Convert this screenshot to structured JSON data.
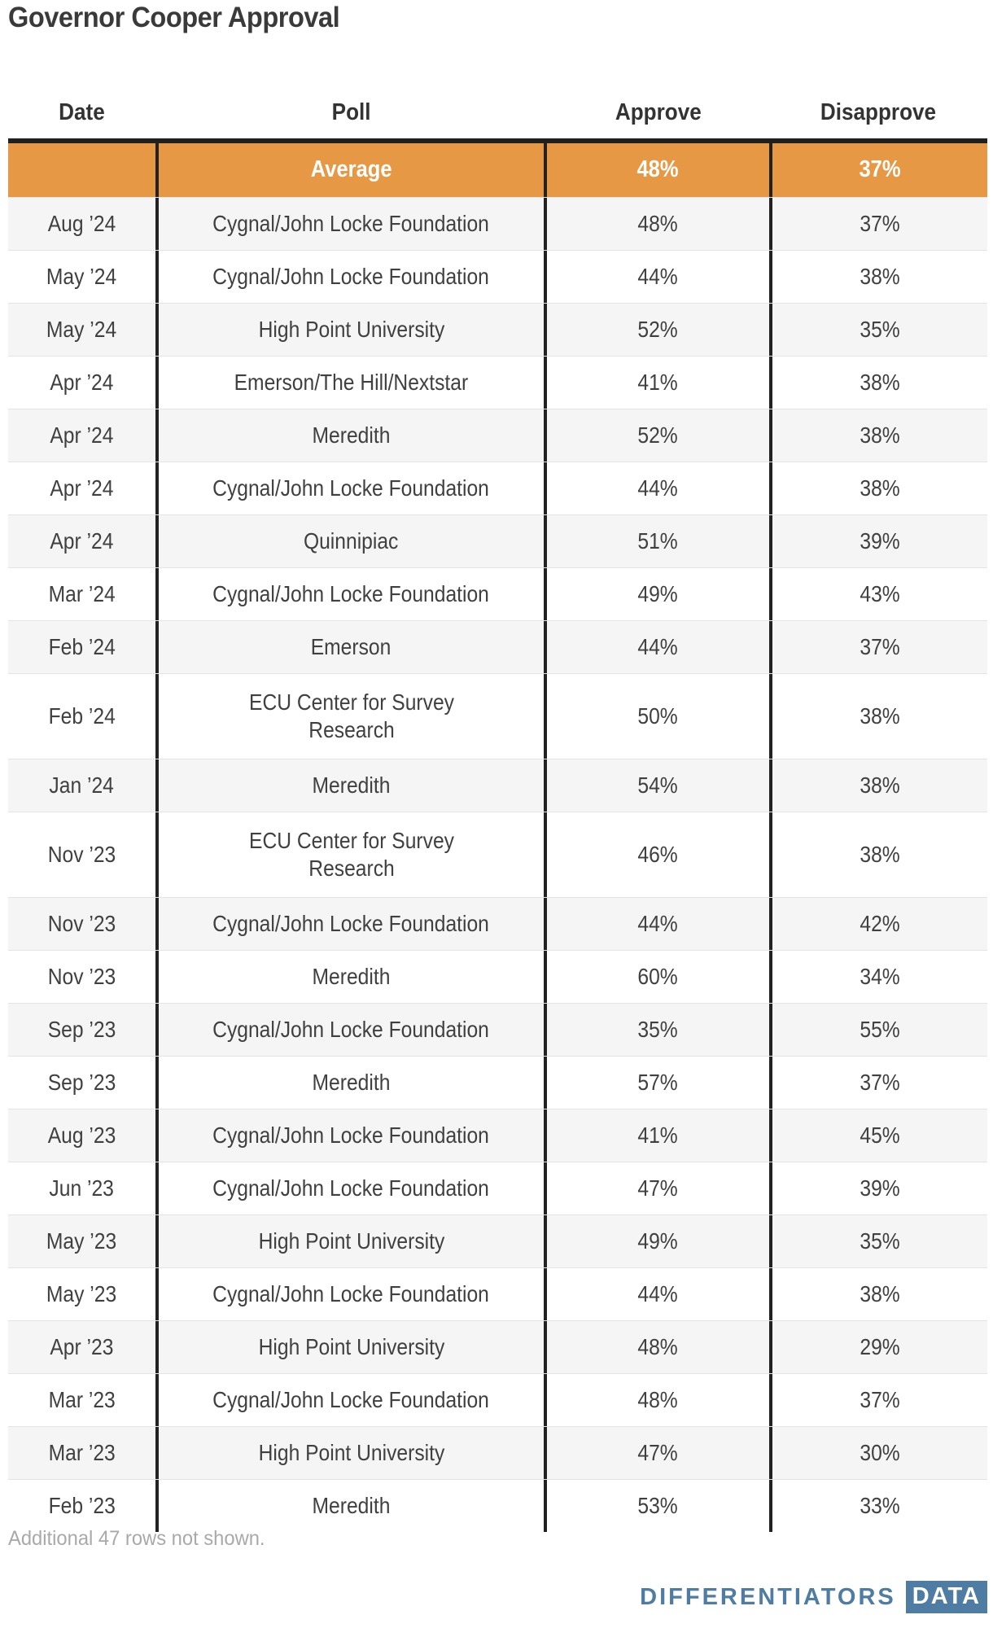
{
  "title": "Governor Cooper Approval",
  "chart_data": {
    "type": "table",
    "title": "Governor Cooper Approval",
    "columns": [
      "Date",
      "Poll",
      "Approve",
      "Disapprove"
    ],
    "average_row": [
      "",
      "Average",
      "48%",
      "37%"
    ],
    "rows": [
      [
        "Aug ’24",
        "Cygnal/John Locke Foundation",
        "48%",
        "37%"
      ],
      [
        "May ’24",
        "Cygnal/John Locke Foundation",
        "44%",
        "38%"
      ],
      [
        "May ’24",
        "High Point University",
        "52%",
        "35%"
      ],
      [
        "Apr ’24",
        "Emerson/The Hill/Nextstar",
        "41%",
        "38%"
      ],
      [
        "Apr ’24",
        "Meredith",
        "52%",
        "38%"
      ],
      [
        "Apr ’24",
        "Cygnal/John Locke Foundation",
        "44%",
        "38%"
      ],
      [
        "Apr ’24",
        "Quinnipiac",
        "51%",
        "39%"
      ],
      [
        "Mar ’24",
        "Cygnal/John Locke Foundation",
        "49%",
        "43%"
      ],
      [
        "Feb ’24",
        "Emerson",
        "44%",
        "37%"
      ],
      [
        "Feb ’24",
        "ECU Center for Survey Research",
        "50%",
        "38%"
      ],
      [
        "Jan ’24",
        "Meredith",
        "54%",
        "38%"
      ],
      [
        "Nov ’23",
        "ECU Center for Survey Research",
        "46%",
        "38%"
      ],
      [
        "Nov ’23",
        "Cygnal/John Locke Foundation",
        "44%",
        "42%"
      ],
      [
        "Nov ’23",
        "Meredith",
        "60%",
        "34%"
      ],
      [
        "Sep ’23",
        "Cygnal/John Locke Foundation",
        "35%",
        "55%"
      ],
      [
        "Sep ’23",
        "Meredith",
        "57%",
        "37%"
      ],
      [
        "Aug ’23",
        "Cygnal/John Locke Foundation",
        "41%",
        "45%"
      ],
      [
        "Jun ’23",
        "Cygnal/John Locke Foundation",
        "47%",
        "39%"
      ],
      [
        "May ’23",
        "High Point University",
        "49%",
        "35%"
      ],
      [
        "May ’23",
        "Cygnal/John Locke Foundation",
        "44%",
        "38%"
      ],
      [
        "Apr ’23",
        "High Point University",
        "48%",
        "29%"
      ],
      [
        "Mar ’23",
        "Cygnal/John Locke Foundation",
        "48%",
        "37%"
      ],
      [
        "Mar ’23",
        "High Point University",
        "47%",
        "30%"
      ],
      [
        "Feb ’23",
        "Meredith",
        "53%",
        "33%"
      ]
    ],
    "layout_hints": {
      "average_row_highlighted": true,
      "zebra_striping": true
    }
  },
  "footer_note": "Additional 47 rows not shown.",
  "logo": {
    "wordmark": "DIFFERENTIATORS",
    "badge": "DATA"
  },
  "colors": {
    "accent_orange": "#e79845",
    "logo_blue": "#4e7ca2",
    "dark_line": "#1f1f1f",
    "zebra_gray": "#f5f5f5",
    "text_dark": "#3a3a3a",
    "footer_gray": "#a9a9a9"
  }
}
